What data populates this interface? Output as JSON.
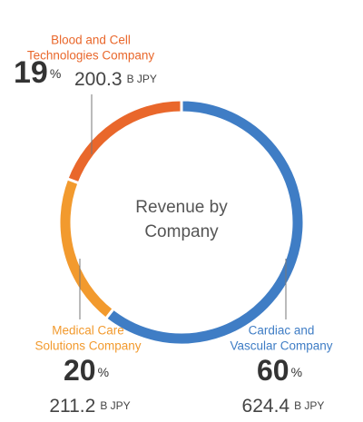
{
  "chart_data": {
    "type": "donut",
    "center_text": [
      "Revenue by",
      "Company"
    ],
    "categories": [
      [
        "Cardiac and",
        "Vascular Company"
      ],
      [
        "Medical Care",
        "Solutions Company"
      ],
      [
        "Blood and Cell",
        "Technologies Company"
      ]
    ],
    "values": [
      60,
      20,
      19
    ],
    "unit": "%",
    "amounts": [
      624.4,
      211.2,
      200.3
    ],
    "amount_unit": "B JPY",
    "colors": [
      "#3f7dc5",
      "#f29a2e",
      "#e9672b"
    ]
  }
}
